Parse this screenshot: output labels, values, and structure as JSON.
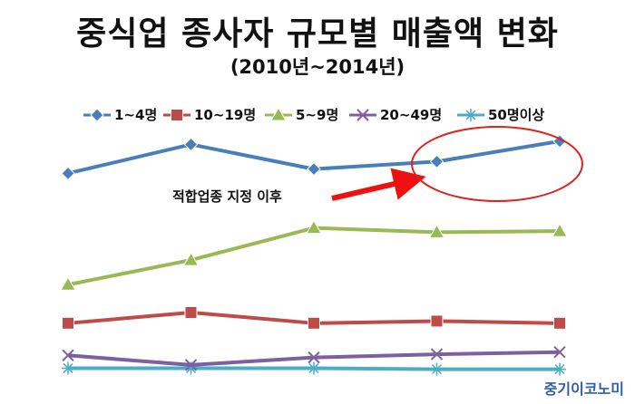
{
  "chart_data": {
    "type": "line",
    "title": "중식업 종사자 규모별 매출액 변화",
    "subtitle": "(2010년~2014년)",
    "categories": [
      "",
      "",
      "",
      "",
      ""
    ],
    "series": [
      {
        "name": "1~4명",
        "color": "#4a7ebb",
        "marker": "diamond",
        "values": [
          6.5,
          9.2,
          6.9,
          7.6,
          9.5
        ]
      },
      {
        "name": "10~19명",
        "color": "#be4b48",
        "marker": "square",
        "values": [
          -7.5,
          -6.5,
          -7.5,
          -7.3,
          -7.5
        ]
      },
      {
        "name": "5~9명",
        "color": "#98b954",
        "marker": "triangle",
        "values": [
          -3.9,
          -1.6,
          1.4,
          1.0,
          1.1
        ]
      },
      {
        "name": "20~49명",
        "color": "#7d60a0",
        "marker": "x",
        "values": [
          -10.5,
          -11.4,
          -10.7,
          -10.4,
          -10.2
        ]
      },
      {
        "name": "50명이상",
        "color": "#4bacc6",
        "marker": "star",
        "values": [
          -11.7,
          -11.7,
          -11.7,
          -11.8,
          -11.8
        ]
      }
    ],
    "annotation": "적합업종 지정 이후",
    "grid": false,
    "legend_position": "top"
  },
  "watermark": "중기이코노미"
}
